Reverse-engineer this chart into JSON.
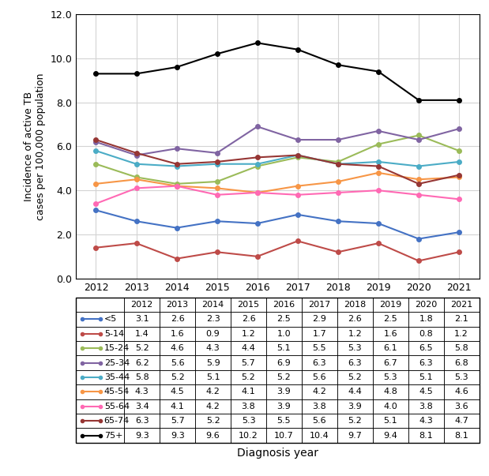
{
  "years": [
    2012,
    2013,
    2014,
    2015,
    2016,
    2017,
    2018,
    2019,
    2020,
    2021
  ],
  "series_order": [
    "<5",
    "5-14",
    "15-24",
    "25-34",
    "35-44",
    "45-54",
    "55-64",
    "65-74",
    "75+"
  ],
  "series": {
    "<5": [
      3.1,
      2.6,
      2.3,
      2.6,
      2.5,
      2.9,
      2.6,
      2.5,
      1.8,
      2.1
    ],
    "5-14": [
      1.4,
      1.6,
      0.9,
      1.2,
      1.0,
      1.7,
      1.2,
      1.6,
      0.8,
      1.2
    ],
    "15-24": [
      5.2,
      4.6,
      4.3,
      4.4,
      5.1,
      5.5,
      5.3,
      6.1,
      6.5,
      5.8
    ],
    "25-34": [
      6.2,
      5.6,
      5.9,
      5.7,
      6.9,
      6.3,
      6.3,
      6.7,
      6.3,
      6.8
    ],
    "35-44": [
      5.8,
      5.2,
      5.1,
      5.2,
      5.2,
      5.6,
      5.2,
      5.3,
      5.1,
      5.3
    ],
    "45-54": [
      4.3,
      4.5,
      4.2,
      4.1,
      3.9,
      4.2,
      4.4,
      4.8,
      4.5,
      4.6
    ],
    "55-64": [
      3.4,
      4.1,
      4.2,
      3.8,
      3.9,
      3.8,
      3.9,
      4.0,
      3.8,
      3.6
    ],
    "65-74": [
      6.3,
      5.7,
      5.2,
      5.3,
      5.5,
      5.6,
      5.2,
      5.1,
      4.3,
      4.7
    ],
    "75+": [
      9.3,
      9.3,
      9.6,
      10.2,
      10.7,
      10.4,
      9.7,
      9.4,
      8.1,
      8.1
    ]
  },
  "colors": {
    "<5": "#4472C4",
    "5-14": "#BE4B48",
    "15-24": "#9BBB59",
    "25-34": "#8064A2",
    "35-44": "#4BACC6",
    "45-54": "#F79646",
    "55-64": "#FF69B4",
    "65-74": "#963634",
    "75+": "#000000"
  },
  "ylabel": "Incidence of active TB\ncases per 100,000 population",
  "xlabel": "Diagnosis year",
  "ylim": [
    0.0,
    12.0
  ],
  "yticks": [
    0.0,
    2.0,
    4.0,
    6.0,
    8.0,
    10.0,
    12.0
  ],
  "background_color": "#FFFFFF"
}
